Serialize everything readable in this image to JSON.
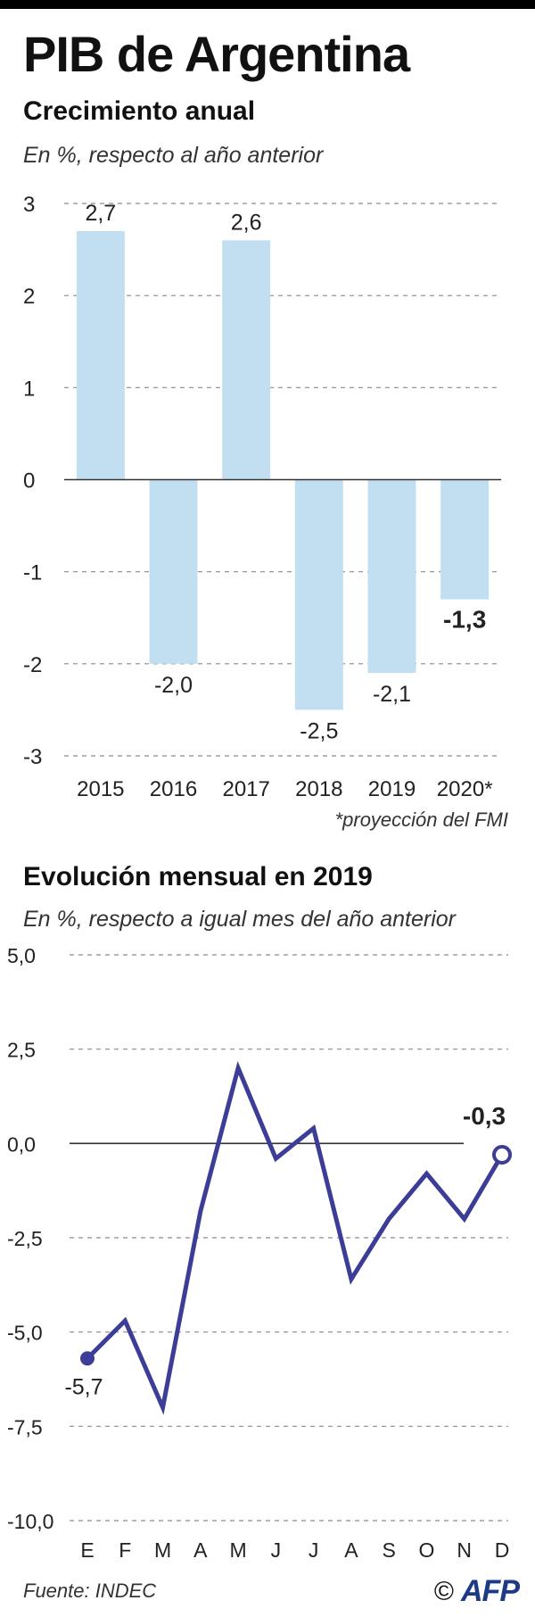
{
  "header": {
    "title": "PIB de Argentina"
  },
  "annual": {
    "heading": "Crecimiento anual",
    "subtitle": "En %, respecto al año anterior",
    "footnote": "*proyección del FMI"
  },
  "monthly": {
    "heading": "Evolución mensual en 2019",
    "subtitle": "En %, respecto a igual mes del año anterior"
  },
  "footer": {
    "source": "Fuente: INDEC",
    "copyright": "©",
    "logo": "AFP"
  },
  "colors": {
    "bar_fill": "#c2dff1",
    "line": "#3b3d97",
    "marker_open_fill": "#ffffff"
  },
  "chart_data": [
    {
      "type": "bar",
      "title": "Crecimiento anual",
      "categories": [
        "2015",
        "2016",
        "2017",
        "2018",
        "2019",
        "2020*"
      ],
      "values": [
        2.7,
        -2.0,
        2.6,
        -2.5,
        -2.1,
        -1.3
      ],
      "value_labels": [
        "2,7",
        "-2,0",
        "2,6",
        "-2,5",
        "-2,1",
        "-1,3"
      ],
      "highlight_label_index": 5,
      "ylim": [
        -3,
        3
      ],
      "yticks": [
        3,
        2,
        1,
        0,
        -1,
        -2,
        -3
      ],
      "ytick_labels": [
        "3",
        "2",
        "1",
        "0",
        "-1",
        "-2",
        "-3"
      ],
      "xlabel": "",
      "ylabel": ""
    },
    {
      "type": "line",
      "title": "Evolución mensual en 2019",
      "categories": [
        "E",
        "F",
        "M",
        "A",
        "M",
        "J",
        "J",
        "A",
        "S",
        "O",
        "N",
        "D"
      ],
      "values": [
        -5.7,
        -4.7,
        -7.0,
        -1.8,
        2.0,
        -0.4,
        0.4,
        -3.6,
        -2.0,
        -0.8,
        -2.0,
        -0.3
      ],
      "point_labels": [
        {
          "index": 0,
          "text": "-5,7",
          "marker": "filled"
        },
        {
          "index": 11,
          "text": "-0,3",
          "marker": "open",
          "bold": true
        }
      ],
      "ylim": [
        -10,
        5
      ],
      "yticks": [
        5,
        2.5,
        0,
        -2.5,
        -5,
        -7.5,
        -10
      ],
      "ytick_labels": [
        "5,0",
        "2,5",
        "0,0",
        "-2,5",
        "-5,0",
        "-7,5",
        "-10,0"
      ],
      "xlabel": "",
      "ylabel": ""
    }
  ]
}
